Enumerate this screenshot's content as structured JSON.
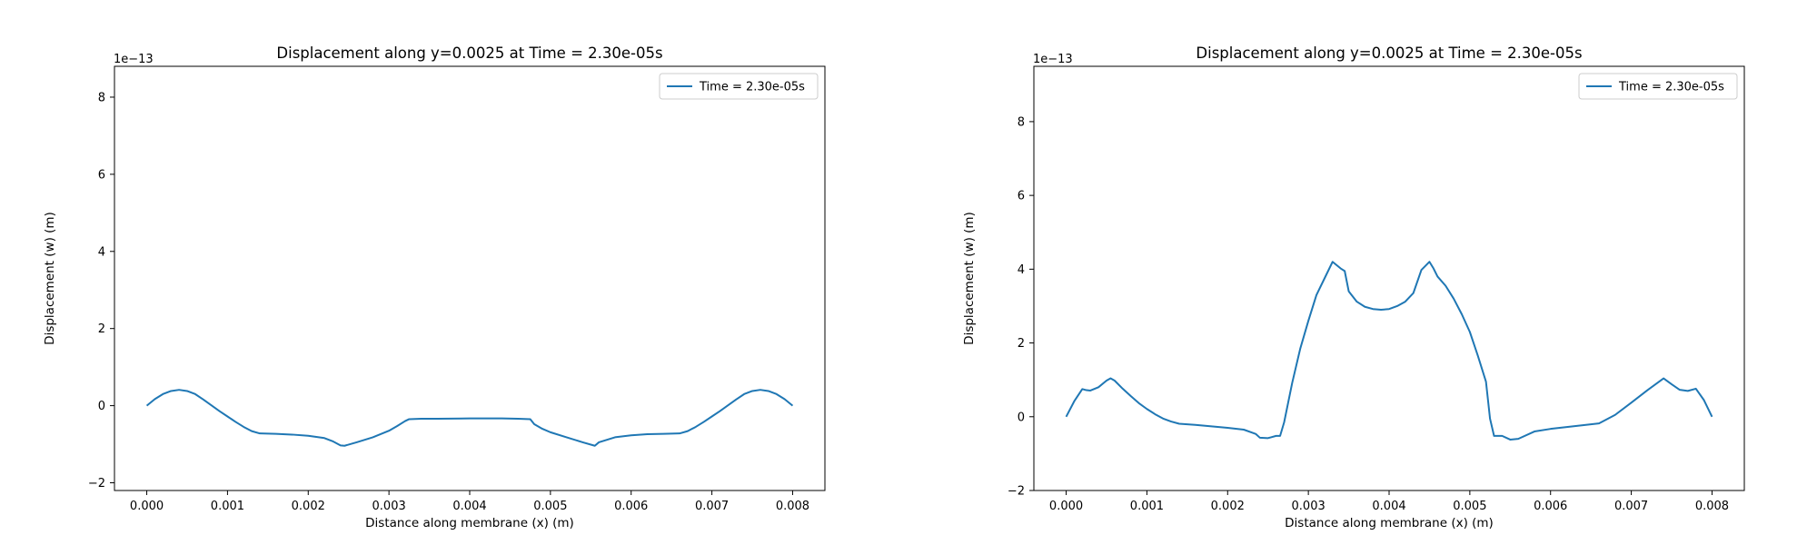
{
  "chart_data": [
    {
      "type": "line",
      "title": "Displacement along y=0.0025 at Time = 2.30e-05s",
      "xlabel": "Distance along membrane (x) (m)",
      "ylabel": "Displacement (w) (m)",
      "y_offset_label": "1e−13",
      "x_ticks": [
        "0.000",
        "0.001",
        "0.002",
        "0.003",
        "0.004",
        "0.005",
        "0.006",
        "0.007",
        "0.008"
      ],
      "y_ticks": [
        "−2",
        "0",
        "2",
        "4",
        "6",
        "8"
      ],
      "y_tick_values": [
        -2,
        0,
        2,
        4,
        6,
        8
      ],
      "xlim": [
        -0.0004,
        0.0084
      ],
      "ylim": [
        -2.2,
        8.8
      ],
      "y_scale": 1e-13,
      "grid": false,
      "legend_position": "upper-right",
      "series": [
        {
          "name": "Time = 2.30e-05s",
          "color": "#1f77b4",
          "x": [
            0.0,
            0.0001,
            0.0002,
            0.0003,
            0.0004,
            0.0005,
            0.0006,
            0.0007,
            0.0008,
            0.0009,
            0.001,
            0.0011,
            0.0012,
            0.0013,
            0.0014,
            0.0016,
            0.0018,
            0.002,
            0.0022,
            0.0023,
            0.0024,
            0.00245,
            0.0026,
            0.0028,
            0.003,
            0.0031,
            0.0032,
            0.00325,
            0.0034,
            0.0036,
            0.004,
            0.0044,
            0.0046,
            0.00475,
            0.0048,
            0.0049,
            0.005,
            0.0052,
            0.0054,
            0.00555,
            0.0056,
            0.0058,
            0.006,
            0.0062,
            0.0064,
            0.0066,
            0.0067,
            0.0068,
            0.0069,
            0.007,
            0.0071,
            0.0072,
            0.0073,
            0.0074,
            0.0075,
            0.0076,
            0.0077,
            0.0078,
            0.0079,
            0.008
          ],
          "y": [
            0.0,
            0.17,
            0.3,
            0.38,
            0.41,
            0.38,
            0.3,
            0.16,
            0.01,
            -0.14,
            -0.28,
            -0.42,
            -0.55,
            -0.66,
            -0.72,
            -0.73,
            -0.75,
            -0.78,
            -0.84,
            -0.92,
            -1.03,
            -1.04,
            -0.95,
            -0.82,
            -0.65,
            -0.53,
            -0.4,
            -0.35,
            -0.34,
            -0.34,
            -0.33,
            -0.33,
            -0.34,
            -0.35,
            -0.48,
            -0.6,
            -0.69,
            -0.82,
            -0.95,
            -1.04,
            -0.95,
            -0.82,
            -0.77,
            -0.74,
            -0.73,
            -0.72,
            -0.66,
            -0.55,
            -0.42,
            -0.28,
            -0.14,
            0.01,
            0.16,
            0.3,
            0.38,
            0.41,
            0.38,
            0.3,
            0.17,
            0.0
          ]
        }
      ]
    },
    {
      "type": "line",
      "title": "Displacement along y=0.0025 at Time = 2.30e-05s",
      "xlabel": "Distance along membrane (x) (m)",
      "ylabel": "Displacement (w) (m)",
      "y_offset_label": "1e−13",
      "x_ticks": [
        "0.000",
        "0.001",
        "0.002",
        "0.003",
        "0.004",
        "0.005",
        "0.006",
        "0.007",
        "0.008"
      ],
      "y_ticks": [
        "−2",
        "0",
        "2",
        "4",
        "6",
        "8"
      ],
      "y_tick_values": [
        -2,
        0,
        2,
        4,
        6,
        8
      ],
      "xlim": [
        -0.0004,
        0.0084
      ],
      "ylim": [
        -2.0,
        9.5
      ],
      "y_scale": 1e-13,
      "grid": false,
      "legend_position": "upper-right",
      "series": [
        {
          "name": "Time = 2.30e-05s",
          "color": "#1f77b4",
          "x": [
            0.0,
            0.0001,
            0.0002,
            0.00025,
            0.0003,
            0.0004,
            0.0005,
            0.00055,
            0.0006,
            0.0007,
            0.0008,
            0.0009,
            0.001,
            0.0011,
            0.0012,
            0.0013,
            0.0014,
            0.0016,
            0.0018,
            0.002,
            0.0022,
            0.0023,
            0.00235,
            0.0024,
            0.0025,
            0.0026,
            0.00265,
            0.0027,
            0.0028,
            0.0029,
            0.003,
            0.0031,
            0.0032,
            0.0033,
            0.0034,
            0.00345,
            0.0035,
            0.0036,
            0.0037,
            0.0038,
            0.0039,
            0.004,
            0.0041,
            0.0042,
            0.0043,
            0.0044,
            0.0045,
            0.00455,
            0.0046,
            0.0047,
            0.0048,
            0.0049,
            0.005,
            0.0051,
            0.0052,
            0.00525,
            0.0053,
            0.0054,
            0.0055,
            0.0056,
            0.0058,
            0.006,
            0.0062,
            0.0064,
            0.0066,
            0.0068,
            0.007,
            0.0072,
            0.0074,
            0.0075,
            0.0076,
            0.0077,
            0.0078,
            0.0079,
            0.008
          ],
          "y": [
            0.0,
            0.42,
            0.75,
            0.72,
            0.71,
            0.8,
            0.98,
            1.04,
            0.98,
            0.76,
            0.56,
            0.37,
            0.21,
            0.07,
            -0.05,
            -0.13,
            -0.19,
            -0.22,
            -0.26,
            -0.3,
            -0.35,
            -0.43,
            -0.47,
            -0.57,
            -0.58,
            -0.52,
            -0.52,
            -0.15,
            0.92,
            1.85,
            2.6,
            3.3,
            3.75,
            4.2,
            4.02,
            3.95,
            3.4,
            3.12,
            2.98,
            2.92,
            2.9,
            2.92,
            3.0,
            3.12,
            3.35,
            3.98,
            4.2,
            4.02,
            3.8,
            3.55,
            3.2,
            2.78,
            2.3,
            1.65,
            0.95,
            -0.05,
            -0.52,
            -0.52,
            -0.62,
            -0.6,
            -0.4,
            -0.33,
            -0.28,
            -0.23,
            -0.18,
            0.05,
            0.38,
            0.72,
            1.04,
            0.88,
            0.73,
            0.7,
            0.76,
            0.45,
            0.0
          ]
        }
      ]
    }
  ]
}
